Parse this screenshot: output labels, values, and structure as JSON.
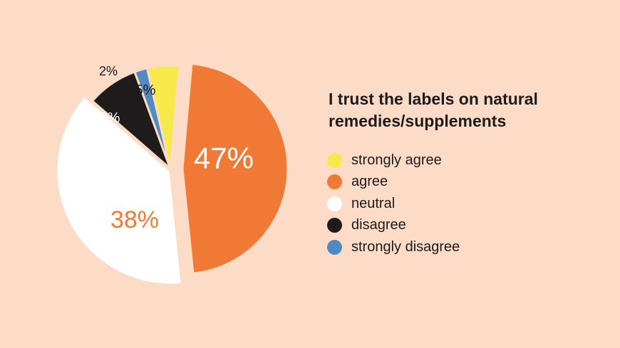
{
  "chart_data": {
    "type": "pie",
    "title_lines": [
      "I trust the labels on natural",
      "remedies/supplements"
    ],
    "slices": [
      {
        "label": "strongly agree",
        "value": 5,
        "value_label": "5%",
        "color": "#F7E94A",
        "label_color": "#1D1B1C"
      },
      {
        "label": "agree",
        "value": 47,
        "value_label": "47%",
        "color": "#F07A35",
        "label_color": "#FFFFFF"
      },
      {
        "label": "neutral",
        "value": 38,
        "value_label": "38%",
        "color": "#FFFFFF",
        "label_color": "#F07A35"
      },
      {
        "label": "disagree",
        "value": 8,
        "value_label": "8%",
        "color": "#1D1B1C",
        "label_color": "#FFFFFF"
      },
      {
        "label": "strongly disagree",
        "value": 2,
        "value_label": "2%",
        "color": "#4F8BC0",
        "label_color": "#1D1B1C"
      }
    ],
    "legend_position": "right"
  },
  "colors": {
    "background": "#FCDCC6",
    "text": "#1D1B1C"
  }
}
